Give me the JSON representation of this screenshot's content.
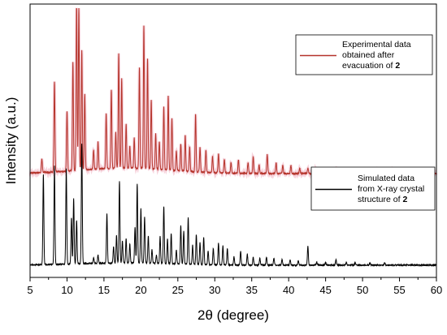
{
  "chart_data": {
    "type": "line",
    "title": "",
    "xlabel": "2θ (degree)",
    "ylabel": "Intensity (a.u.)",
    "xlim": [
      5,
      60
    ],
    "xticks": [
      5,
      10,
      15,
      20,
      25,
      30,
      35,
      40,
      45,
      50,
      55,
      60
    ],
    "y_ticks_shown": false,
    "grid": false,
    "series": [
      {
        "legend_lines": [
          "Experimental data",
          "obtained after",
          "evacuation of "
        ],
        "legend_bold": "2",
        "color": "#b5332a",
        "legend_position": "top-right",
        "baseline_level": 0.38,
        "peak_height_scale": 1.0,
        "peaks": [
          [
            6.6,
            0.05
          ],
          [
            8.3,
            0.33
          ],
          [
            10.0,
            0.22
          ],
          [
            10.8,
            0.4
          ],
          [
            11.3,
            0.62
          ],
          [
            11.6,
            0.6
          ],
          [
            12.0,
            0.44
          ],
          [
            12.4,
            0.28
          ],
          [
            13.6,
            0.07
          ],
          [
            14.2,
            0.1
          ],
          [
            15.3,
            0.2
          ],
          [
            16.0,
            0.29
          ],
          [
            16.6,
            0.13
          ],
          [
            17.0,
            0.42
          ],
          [
            17.4,
            0.33
          ],
          [
            18.0,
            0.16
          ],
          [
            18.5,
            0.08
          ],
          [
            19.1,
            0.11
          ],
          [
            19.8,
            0.37
          ],
          [
            20.4,
            0.52
          ],
          [
            20.9,
            0.4
          ],
          [
            21.4,
            0.25
          ],
          [
            22.0,
            0.13
          ],
          [
            22.5,
            0.1
          ],
          [
            23.1,
            0.23
          ],
          [
            23.7,
            0.27
          ],
          [
            24.2,
            0.19
          ],
          [
            24.8,
            0.07
          ],
          [
            25.4,
            0.1
          ],
          [
            26.0,
            0.13
          ],
          [
            26.6,
            0.09
          ],
          [
            27.4,
            0.21
          ],
          [
            28.0,
            0.09
          ],
          [
            28.8,
            0.08
          ],
          [
            29.7,
            0.06
          ],
          [
            30.5,
            0.07
          ],
          [
            31.3,
            0.05
          ],
          [
            32.2,
            0.04
          ],
          [
            33.2,
            0.05
          ],
          [
            34.5,
            0.04
          ],
          [
            35.2,
            0.06
          ],
          [
            36.0,
            0.03
          ],
          [
            37.1,
            0.07
          ],
          [
            38.3,
            0.04
          ],
          [
            39.2,
            0.03
          ],
          [
            40.3,
            0.03
          ],
          [
            41.5,
            0.02
          ],
          [
            42.6,
            0.02
          ],
          [
            43.7,
            0.02
          ],
          [
            45.0,
            0.015
          ],
          [
            46.5,
            0.02
          ],
          [
            48.0,
            0.015
          ],
          [
            50.0,
            0.01
          ],
          [
            52.0,
            0.01
          ],
          [
            54.0,
            0.01
          ]
        ]
      },
      {
        "legend_lines": [
          "Simulated data",
          "from X-ray crystal",
          "structure of "
        ],
        "legend_bold": "2",
        "color": "#000000",
        "legend_position": "middle-right",
        "baseline_level": 0.045,
        "peak_height_scale": 1.0,
        "peaks": [
          [
            6.8,
            0.33
          ],
          [
            8.3,
            0.36
          ],
          [
            9.9,
            0.35
          ],
          [
            10.6,
            0.17
          ],
          [
            10.9,
            0.24
          ],
          [
            11.3,
            0.16
          ],
          [
            12.0,
            0.44
          ],
          [
            13.6,
            0.02
          ],
          [
            14.2,
            0.03
          ],
          [
            15.4,
            0.18
          ],
          [
            16.3,
            0.06
          ],
          [
            16.7,
            0.1
          ],
          [
            17.1,
            0.3
          ],
          [
            17.5,
            0.08
          ],
          [
            18.0,
            0.09
          ],
          [
            18.5,
            0.07
          ],
          [
            19.2,
            0.13
          ],
          [
            19.5,
            0.29
          ],
          [
            20.0,
            0.2
          ],
          [
            20.5,
            0.17
          ],
          [
            21.0,
            0.1
          ],
          [
            21.5,
            0.05
          ],
          [
            22.1,
            0.03
          ],
          [
            22.6,
            0.1
          ],
          [
            23.1,
            0.21
          ],
          [
            23.6,
            0.09
          ],
          [
            24.1,
            0.11
          ],
          [
            24.8,
            0.05
          ],
          [
            25.4,
            0.14
          ],
          [
            25.8,
            0.12
          ],
          [
            26.4,
            0.17
          ],
          [
            27.0,
            0.07
          ],
          [
            27.5,
            0.11
          ],
          [
            28.0,
            0.08
          ],
          [
            28.5,
            0.1
          ],
          [
            29.1,
            0.05
          ],
          [
            29.8,
            0.06
          ],
          [
            30.5,
            0.08
          ],
          [
            31.1,
            0.07
          ],
          [
            31.7,
            0.06
          ],
          [
            32.6,
            0.03
          ],
          [
            33.5,
            0.05
          ],
          [
            34.4,
            0.04
          ],
          [
            35.2,
            0.03
          ],
          [
            36.1,
            0.025
          ],
          [
            37.0,
            0.03
          ],
          [
            38.0,
            0.025
          ],
          [
            39.1,
            0.02
          ],
          [
            40.2,
            0.02
          ],
          [
            41.3,
            0.015
          ],
          [
            42.6,
            0.07
          ],
          [
            43.8,
            0.01
          ],
          [
            45.0,
            0.01
          ],
          [
            46.4,
            0.02
          ],
          [
            47.8,
            0.01
          ],
          [
            49.0,
            0.01
          ],
          [
            51.0,
            0.008
          ],
          [
            53.0,
            0.008
          ]
        ]
      }
    ]
  }
}
